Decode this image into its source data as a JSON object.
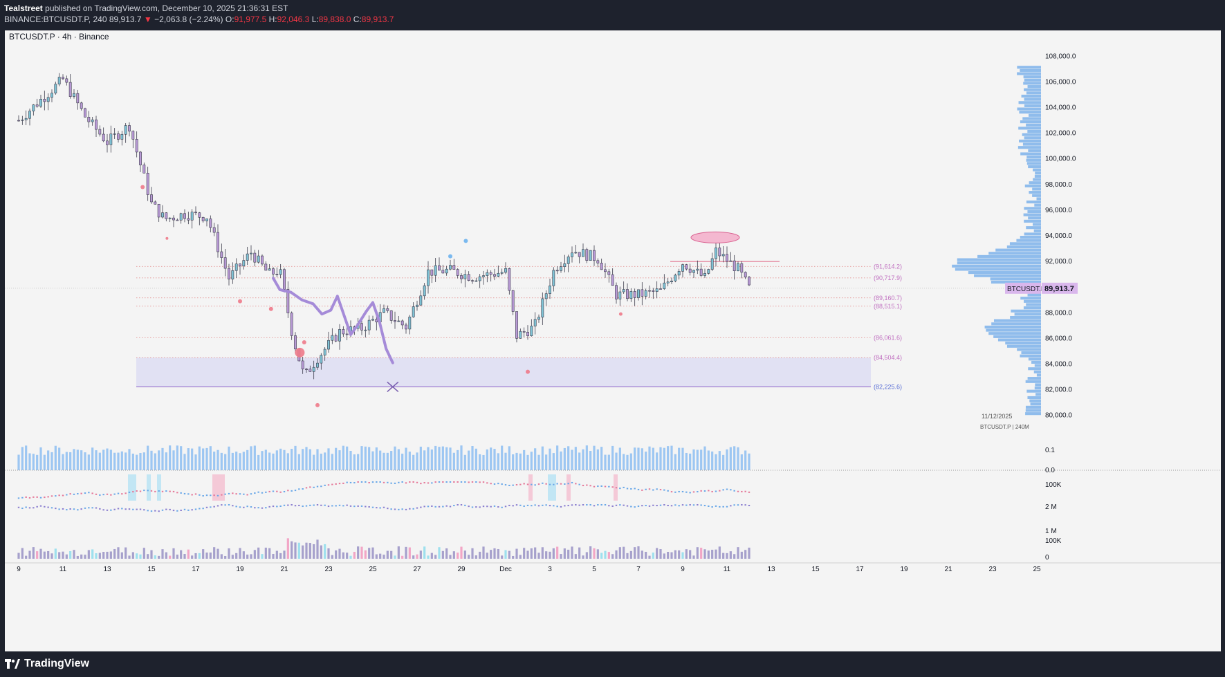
{
  "header": {
    "author": "Tealstreet",
    "published": "published on TradingView.com, December 10, 2025 21:36:31 EST",
    "symbol": "BINANCE:BTCUSDT.P, 240",
    "last": "89,913.7",
    "change": "−2,063.8 (−2.24%)",
    "o_label": "O:",
    "o": "91,977.5",
    "h_label": "H:",
    "h": "92,046.3",
    "l_label": "L:",
    "l": "89,838.0",
    "c_label": "C:",
    "c": "89,913.7"
  },
  "footer": {
    "logo_text": "TradingView"
  },
  "colors": {
    "background": "#f4f4f4",
    "bull_fill": "#7fc4d6",
    "bear_fill": "#b99ad6",
    "volume": "#9cc6f2",
    "volume_profile": "#3d8ee6",
    "level_line": "#e08080",
    "zone": "#dcdcf2",
    "projection": "#a58bd8",
    "price_tag": "#d9b7ec"
  },
  "chart_data": {
    "type": "candlestick",
    "title": "BTCUSDT.P · 4h · Binance",
    "currency": "USDT",
    "y_axis": {
      "side": "right",
      "range": [
        79500,
        108500
      ],
      "ticks": [
        "108,000.0",
        "106,000.0",
        "104,000.0",
        "102,000.0",
        "100,000.0",
        "98,000.0",
        "96,000.0",
        "94,000.0",
        "92,000.0",
        "90,000.0",
        "88,000.0",
        "86,000.0",
        "84,000.0",
        "82,000.0",
        "80,000.0"
      ],
      "tick_values": [
        108000,
        106000,
        104000,
        102000,
        100000,
        98000,
        96000,
        94000,
        92000,
        90000,
        88000,
        86000,
        84000,
        82000,
        80000
      ]
    },
    "x_axis": {
      "ticks": [
        "9",
        "11",
        "13",
        "15",
        "17",
        "19",
        "21",
        "23",
        "25",
        "27",
        "29",
        "Dec",
        "3",
        "5",
        "7",
        "9",
        "11",
        "13",
        "15",
        "17",
        "19",
        "21",
        "23",
        "25"
      ],
      "tick_day_index": [
        0,
        2,
        4,
        6,
        8,
        10,
        12,
        14,
        16,
        18,
        20,
        22,
        24,
        26,
        28,
        30,
        32,
        34,
        36,
        38,
        40,
        42,
        44,
        46
      ]
    },
    "last_price": {
      "value": 89913.7,
      "label": "89,913.7",
      "symbol": "BTCUSDT.P"
    },
    "levels": [
      {
        "value": 91614.2,
        "label": "(91,614.2)"
      },
      {
        "value": 90717.9,
        "label": "(90,717.9)"
      },
      {
        "value": 89160.7,
        "label": "(89,160.7)"
      },
      {
        "value": 88515.1,
        "label": "(88,515.1)"
      },
      {
        "value": 86061.6,
        "label": "(86,061.6)"
      },
      {
        "value": 84504.4,
        "label": "(84,504.4)"
      },
      {
        "value": 82225.6,
        "label": "(82,225.6)"
      }
    ],
    "demand_zone": [
      82225.6,
      84504.4
    ],
    "resistance_line": 92000,
    "projection_path": [
      [
        11.5,
        90700
      ],
      [
        11.8,
        89800
      ],
      [
        12.3,
        89600
      ],
      [
        12.8,
        89000
      ],
      [
        13.3,
        88700
      ],
      [
        13.7,
        87900
      ],
      [
        14.1,
        88200
      ],
      [
        14.4,
        89300
      ],
      [
        14.7,
        87800
      ],
      [
        15.0,
        86300
      ],
      [
        15.3,
        87000
      ],
      [
        15.7,
        88100
      ],
      [
        16.0,
        88800
      ],
      [
        16.3,
        87300
      ],
      [
        16.6,
        85200
      ],
      [
        16.9,
        84100
      ]
    ],
    "target_marker": {
      "day": 16.9,
      "value": 82225.6
    },
    "anchors": [
      {
        "day": 0,
        "value": 103000
      },
      {
        "day": 2,
        "value": 106200
      },
      {
        "day": 3,
        "value": 103300
      },
      {
        "day": 4,
        "value": 101300
      },
      {
        "day": 5,
        "value": 102600
      },
      {
        "day": 6,
        "value": 96500
      },
      {
        "day": 6.6,
        "value": 95300
      },
      {
        "day": 7.5,
        "value": 95700
      },
      {
        "day": 8.5,
        "value": 95500
      },
      {
        "day": 9.5,
        "value": 90700
      },
      {
        "day": 10.5,
        "value": 92700
      },
      {
        "day": 11.3,
        "value": 91000
      },
      {
        "day": 11.8,
        "value": 91300
      },
      {
        "day": 12.4,
        "value": 86000
      },
      {
        "day": 12.9,
        "value": 83000
      },
      {
        "day": 13.5,
        "value": 84500
      },
      {
        "day": 14.5,
        "value": 86500
      },
      {
        "day": 15.5,
        "value": 86800
      },
      {
        "day": 16.5,
        "value": 88000
      },
      {
        "day": 17.5,
        "value": 86900
      },
      {
        "day": 18.5,
        "value": 91200
      },
      {
        "day": 19.5,
        "value": 91300
      },
      {
        "day": 20.5,
        "value": 90800
      },
      {
        "day": 22.0,
        "value": 91200
      },
      {
        "day": 22.5,
        "value": 86200
      },
      {
        "day": 23.3,
        "value": 86900
      },
      {
        "day": 24.2,
        "value": 91400
      },
      {
        "day": 25.0,
        "value": 92900
      },
      {
        "day": 26.2,
        "value": 92200
      },
      {
        "day": 27.0,
        "value": 89400
      },
      {
        "day": 28.0,
        "value": 89400
      },
      {
        "day": 29.0,
        "value": 89700
      },
      {
        "day": 30.0,
        "value": 91900
      },
      {
        "day": 31.0,
        "value": 90700
      },
      {
        "day": 31.5,
        "value": 92800
      },
      {
        "day": 32.5,
        "value": 91400
      },
      {
        "day": 33.0,
        "value": 89900
      }
    ],
    "panels": {
      "volume_ticks": [
        "0.1",
        "0.0"
      ],
      "indicator1_ticks": [
        "100K",
        "2 M"
      ],
      "indicator2_ticks": [
        "1 M",
        "100K",
        "0"
      ]
    },
    "watermark": {
      "date": "11/12/2025",
      "label": "BTCUSDT.P | 240M"
    }
  }
}
